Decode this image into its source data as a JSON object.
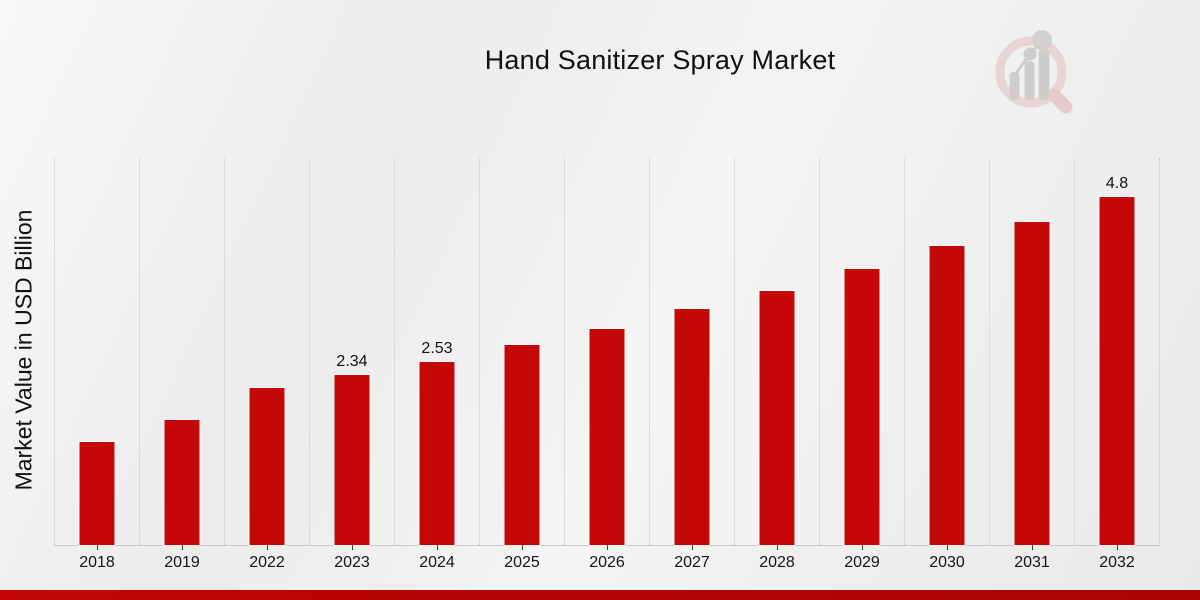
{
  "chart_data": {
    "type": "bar",
    "title": "Hand Sanitizer Spray Market",
    "xlabel": "",
    "ylabel": "Market Value in USD Billion",
    "categories": [
      "2018",
      "2019",
      "2022",
      "2023",
      "2024",
      "2025",
      "2026",
      "2027",
      "2028",
      "2029",
      "2030",
      "2031",
      "2032"
    ],
    "values": [
      1.42,
      1.72,
      2.17,
      2.34,
      2.53,
      2.76,
      2.98,
      3.25,
      3.51,
      3.81,
      4.13,
      4.46,
      4.8
    ],
    "data_labels": [
      "",
      "",
      "",
      "2.34",
      "2.53",
      "",
      "",
      "",
      "",
      "",
      "",
      "",
      "4.8"
    ],
    "ylim": [
      0,
      5.34
    ],
    "bar_color": "#c40707",
    "grid": "vertical-dotted",
    "legend_position": "none"
  },
  "branding": {
    "logo_icon": "magnifier-bar-chart-logo",
    "logo_ring_color": "#e8d4d4",
    "logo_bars_color": "#cfcccc",
    "accent_bar_color": "#b50505"
  }
}
